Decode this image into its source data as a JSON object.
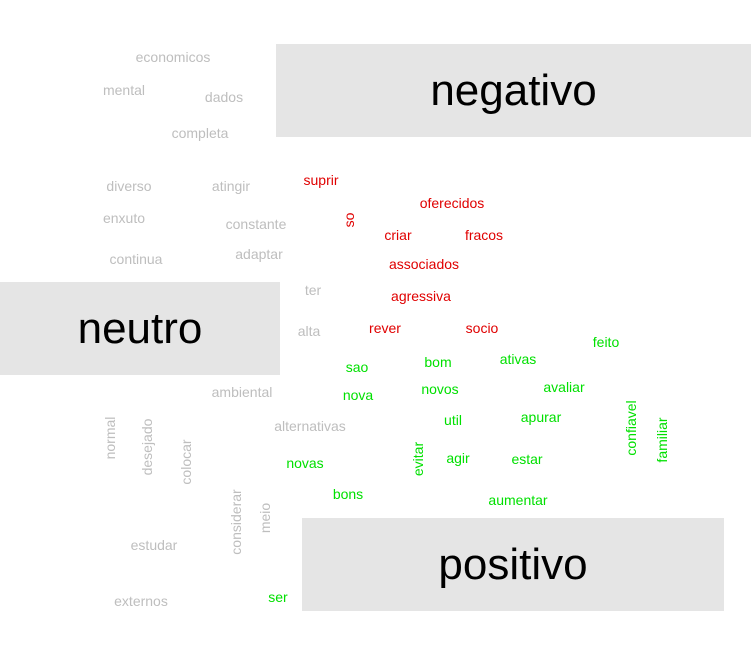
{
  "colors": {
    "neutro": "#bebebe",
    "negativo": "#e00000",
    "positivo": "#00e000",
    "box_bg": "#e5e5e5"
  },
  "chart_data": {
    "type": "wordcloud",
    "title": "",
    "groups": [
      {
        "label": "negativo",
        "color_key": "negativo"
      },
      {
        "label": "neutro",
        "color_key": "neutro"
      },
      {
        "label": "positivo",
        "color_key": "positivo"
      }
    ],
    "words": [
      {
        "text": "economicos",
        "group": "neutro"
      },
      {
        "text": "mental",
        "group": "neutro"
      },
      {
        "text": "dados",
        "group": "neutro"
      },
      {
        "text": "completa",
        "group": "neutro"
      },
      {
        "text": "diverso",
        "group": "neutro"
      },
      {
        "text": "atingir",
        "group": "neutro"
      },
      {
        "text": "enxuto",
        "group": "neutro"
      },
      {
        "text": "constante",
        "group": "neutro"
      },
      {
        "text": "continua",
        "group": "neutro"
      },
      {
        "text": "adaptar",
        "group": "neutro"
      },
      {
        "text": "ter",
        "group": "neutro"
      },
      {
        "text": "alta",
        "group": "neutro"
      },
      {
        "text": "ambiental",
        "group": "neutro"
      },
      {
        "text": "alternativas",
        "group": "neutro"
      },
      {
        "text": "normal",
        "group": "neutro",
        "vertical": true
      },
      {
        "text": "desejado",
        "group": "neutro",
        "vertical": true
      },
      {
        "text": "colocar",
        "group": "neutro",
        "vertical": true
      },
      {
        "text": "considerar",
        "group": "neutro",
        "vertical": true
      },
      {
        "text": "meio",
        "group": "neutro",
        "vertical": true
      },
      {
        "text": "estudar",
        "group": "neutro"
      },
      {
        "text": "externos",
        "group": "neutro"
      },
      {
        "text": "suprir",
        "group": "negativo"
      },
      {
        "text": "oferecidos",
        "group": "negativo"
      },
      {
        "text": "so",
        "group": "negativo",
        "vertical": true
      },
      {
        "text": "criar",
        "group": "negativo"
      },
      {
        "text": "fracos",
        "group": "negativo"
      },
      {
        "text": "associados",
        "group": "negativo"
      },
      {
        "text": "agressiva",
        "group": "negativo"
      },
      {
        "text": "rever",
        "group": "negativo"
      },
      {
        "text": "socio",
        "group": "negativo"
      },
      {
        "text": "feito",
        "group": "positivo"
      },
      {
        "text": "sao",
        "group": "positivo"
      },
      {
        "text": "bom",
        "group": "positivo"
      },
      {
        "text": "ativas",
        "group": "positivo"
      },
      {
        "text": "nova",
        "group": "positivo"
      },
      {
        "text": "novos",
        "group": "positivo"
      },
      {
        "text": "avaliar",
        "group": "positivo"
      },
      {
        "text": "confiavel",
        "group": "positivo",
        "vertical": true
      },
      {
        "text": "util",
        "group": "positivo"
      },
      {
        "text": "apurar",
        "group": "positivo"
      },
      {
        "text": "familiar",
        "group": "positivo",
        "vertical": true
      },
      {
        "text": "evitar",
        "group": "positivo",
        "vertical": true
      },
      {
        "text": "novas",
        "group": "positivo"
      },
      {
        "text": "agir",
        "group": "positivo"
      },
      {
        "text": "estar",
        "group": "positivo"
      },
      {
        "text": "bons",
        "group": "positivo"
      },
      {
        "text": "aumentar",
        "group": "positivo"
      },
      {
        "text": "ser",
        "group": "positivo"
      }
    ]
  }
}
